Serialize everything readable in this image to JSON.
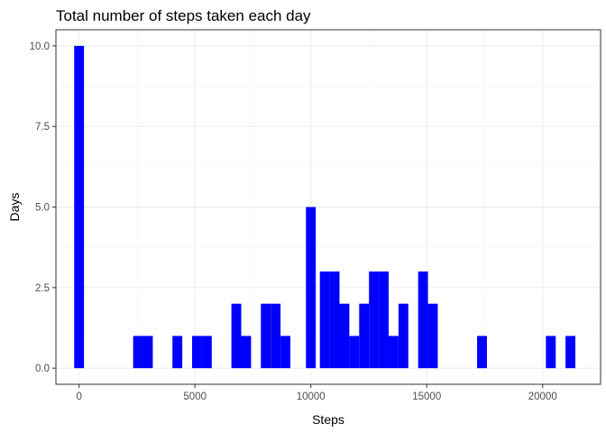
{
  "chart_data": {
    "type": "bar",
    "title": "Total number of steps taken each day",
    "xlabel": "Steps",
    "ylabel": "Days",
    "xlim": [
      -1000,
      22500
    ],
    "ylim": [
      -0.5,
      10.5
    ],
    "x_ticks": [
      0,
      5000,
      10000,
      15000,
      20000
    ],
    "x_tick_labels": [
      "0",
      "5000",
      "10000",
      "15000",
      "20000"
    ],
    "y_ticks": [
      0,
      2.5,
      5,
      7.5,
      10
    ],
    "y_tick_labels": [
      "0.0",
      "2.5",
      "5.0",
      "7.5",
      "10.0"
    ],
    "bin_width": 424,
    "bar_color": "#0000ff",
    "grid": true,
    "bins": [
      {
        "x": 0,
        "count": 10
      },
      {
        "x": 2544,
        "count": 1
      },
      {
        "x": 2968,
        "count": 1
      },
      {
        "x": 4240,
        "count": 1
      },
      {
        "x": 5088,
        "count": 1
      },
      {
        "x": 5512,
        "count": 1
      },
      {
        "x": 6784,
        "count": 2
      },
      {
        "x": 7208,
        "count": 1
      },
      {
        "x": 8056,
        "count": 2
      },
      {
        "x": 8480,
        "count": 2
      },
      {
        "x": 8904,
        "count": 1
      },
      {
        "x": 9752,
        "count": 0
      },
      {
        "x": 10000,
        "count": 5
      },
      {
        "x": 10600,
        "count": 3
      },
      {
        "x": 11024,
        "count": 3
      },
      {
        "x": 11448,
        "count": 2
      },
      {
        "x": 11872,
        "count": 1
      },
      {
        "x": 12296,
        "count": 2
      },
      {
        "x": 12720,
        "count": 3
      },
      {
        "x": 13144,
        "count": 3
      },
      {
        "x": 13568,
        "count": 1
      },
      {
        "x": 13992,
        "count": 2
      },
      {
        "x": 14840,
        "count": 3
      },
      {
        "x": 15264,
        "count": 2
      },
      {
        "x": 17384,
        "count": 1
      },
      {
        "x": 20352,
        "count": 1
      },
      {
        "x": 21200,
        "count": 1
      }
    ]
  }
}
